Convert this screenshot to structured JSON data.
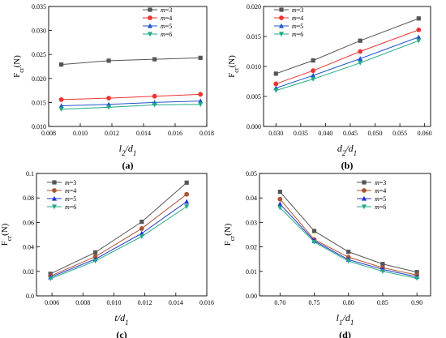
{
  "chart_data": [
    {
      "type": "line",
      "panel_label": "(a)",
      "ylabel": "F_cr(N)",
      "xlabel": "l_2/d_1",
      "x": [
        0.0088,
        0.0118,
        0.0147,
        0.0176
      ],
      "xlim": [
        0.008,
        0.018
      ],
      "ylim": [
        0.01,
        0.035
      ],
      "xticks": [
        "0.008",
        "0.010",
        "0.012",
        "0.014",
        "0.016",
        "0.018"
      ],
      "yticks": [
        "0.010",
        "0.015",
        "0.020",
        "0.025",
        "0.030",
        "0.035"
      ],
      "legend_position": "top-right",
      "series": [
        {
          "name": "m=3",
          "color": "#555555",
          "marker": "square",
          "values": [
            0.0229,
            0.0237,
            0.024,
            0.0243
          ]
        },
        {
          "name": "m=4",
          "color": "#ee3333",
          "marker": "circle",
          "values": [
            0.0156,
            0.0159,
            0.0163,
            0.0167
          ]
        },
        {
          "name": "m=5",
          "color": "#2255cc",
          "marker": "triangle",
          "values": [
            0.0143,
            0.0146,
            0.015,
            0.0153
          ]
        },
        {
          "name": "m=6",
          "color": "#22aa88",
          "marker": "tri-down",
          "values": [
            0.0136,
            0.014,
            0.0145,
            0.0146
          ]
        }
      ]
    },
    {
      "type": "line",
      "panel_label": "(b)",
      "ylabel": "F_cr(N)",
      "xlabel": "d_2/d_1",
      "x": [
        0.03,
        0.0375,
        0.047,
        0.0588
      ],
      "xlim": [
        0.0275,
        0.0612
      ],
      "ylim": [
        0.0,
        0.02
      ],
      "xticks": [
        "0.030",
        "0.035",
        "0.040",
        "0.045",
        "0.050",
        "0.055",
        "0.060"
      ],
      "yticks": [
        "0.000",
        "0.005",
        "0.010",
        "0.015",
        "0.020"
      ],
      "legend_position": "top-left",
      "series": [
        {
          "name": "m=3",
          "color": "#555555",
          "marker": "square",
          "values": [
            0.0088,
            0.011,
            0.0143,
            0.018
          ]
        },
        {
          "name": "m=4",
          "color": "#ee3333",
          "marker": "circle",
          "values": [
            0.0071,
            0.0093,
            0.0125,
            0.0161
          ]
        },
        {
          "name": "m=5",
          "color": "#2255cc",
          "marker": "triangle",
          "values": [
            0.0064,
            0.0085,
            0.0113,
            0.0149
          ]
        },
        {
          "name": "m=6",
          "color": "#22aa88",
          "marker": "tri-down",
          "values": [
            0.006,
            0.0079,
            0.0106,
            0.0143
          ]
        }
      ]
    },
    {
      "type": "line",
      "panel_label": "(c)",
      "ylabel": "F_cr(N)",
      "xlabel": "t/d_1",
      "x": [
        0.0059,
        0.0088,
        0.0118,
        0.0147
      ],
      "xlim": [
        0.005,
        0.016
      ],
      "ylim": [
        0.0,
        0.1
      ],
      "xticks": [
        "0.006",
        "0.008",
        "0.010",
        "0.012",
        "0.014",
        "0.016"
      ],
      "yticks": [
        "0.0",
        "0.02",
        "0.04",
        "0.06",
        "0.08",
        "0.1"
      ],
      "legend_position": "top-left",
      "series": [
        {
          "name": "m=3",
          "color": "#555555",
          "marker": "square",
          "values": [
            0.018,
            0.0355,
            0.0605,
            0.0925
          ]
        },
        {
          "name": "m=4",
          "color": "#aa5533",
          "marker": "circle",
          "values": [
            0.0162,
            0.032,
            0.055,
            0.083
          ]
        },
        {
          "name": "m=5",
          "color": "#2233cc",
          "marker": "triangle",
          "values": [
            0.0152,
            0.03,
            0.051,
            0.077
          ]
        },
        {
          "name": "m=6",
          "color": "#22aa88",
          "marker": "tri-down",
          "values": [
            0.014,
            0.0285,
            0.0485,
            0.073
          ]
        }
      ]
    },
    {
      "type": "line",
      "panel_label": "(d)",
      "ylabel": "F_cr(N)",
      "xlabel": "l_1/d_1",
      "x": [
        0.7,
        0.75,
        0.8,
        0.85,
        0.9
      ],
      "xlim": [
        0.67,
        0.92
      ],
      "ylim": [
        0.0,
        0.05
      ],
      "xticks": [
        "0.70",
        "0.75",
        "0.80",
        "0.85",
        "0.90"
      ],
      "yticks": [
        "0.00",
        "0.01",
        "0.02",
        "0.03",
        "0.04",
        "0.05"
      ],
      "legend_position": "top-right",
      "series": [
        {
          "name": "m=3",
          "color": "#555555",
          "marker": "square",
          "values": [
            0.0425,
            0.0265,
            0.018,
            0.013,
            0.0097
          ]
        },
        {
          "name": "m=4",
          "color": "#aa5533",
          "marker": "circle",
          "values": [
            0.0395,
            0.023,
            0.0158,
            0.0115,
            0.0085
          ]
        },
        {
          "name": "m=5",
          "color": "#2233cc",
          "marker": "triangle",
          "values": [
            0.0375,
            0.0225,
            0.0148,
            0.0108,
            0.0078
          ]
        },
        {
          "name": "m=6",
          "color": "#22aa88",
          "marker": "tri-down",
          "values": [
            0.036,
            0.022,
            0.0142,
            0.01,
            0.0072
          ]
        }
      ]
    }
  ]
}
